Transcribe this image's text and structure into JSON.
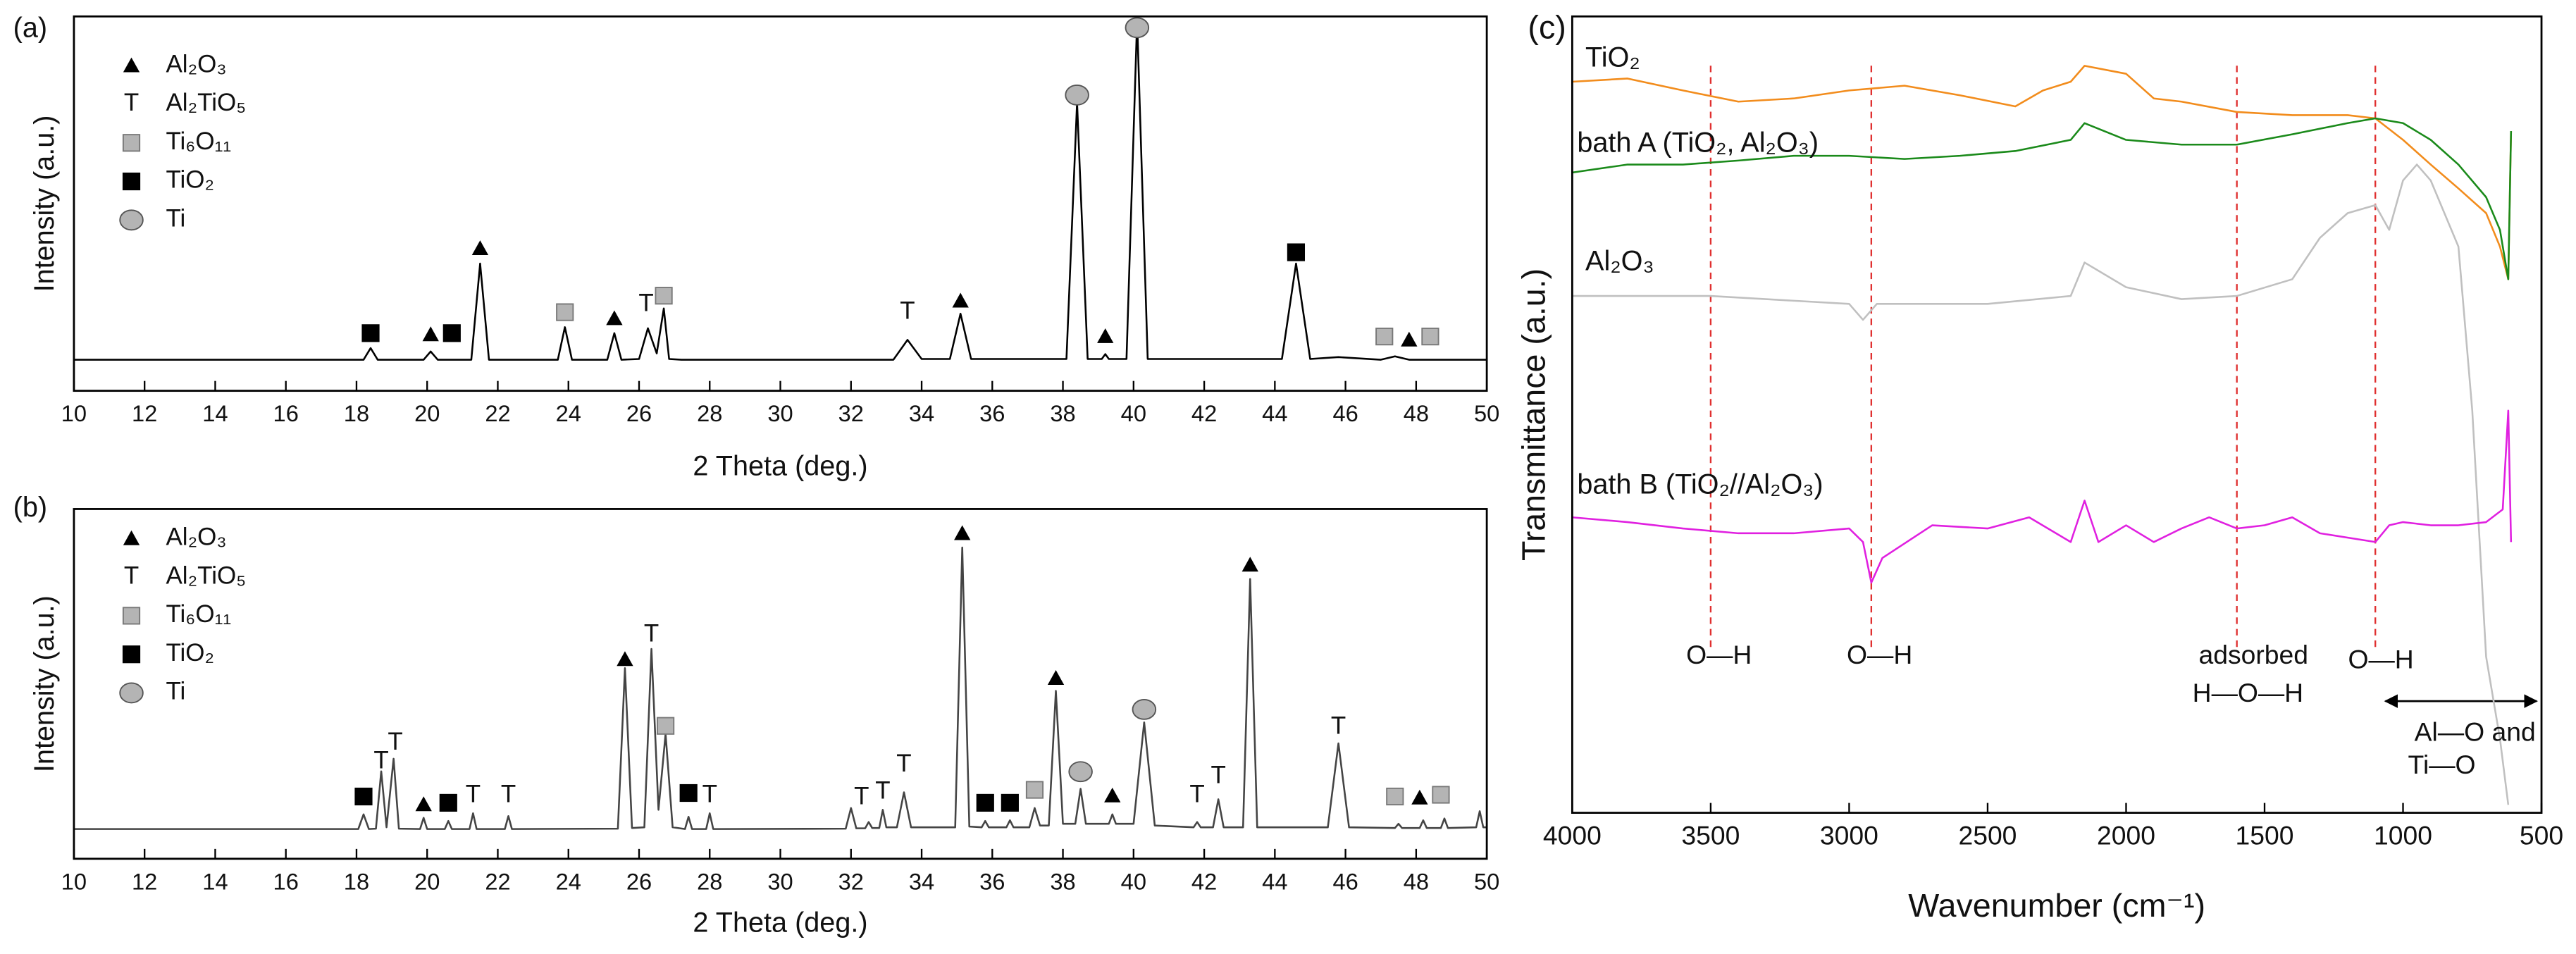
{
  "chart_data": [
    {
      "type": "line",
      "panel_label": "(a)",
      "x_label": "2 Theta (deg.)",
      "y_label": "Intensity (a.u.)",
      "xlim": [
        10,
        50
      ],
      "xticks": [
        10,
        12,
        14,
        16,
        18,
        20,
        22,
        24,
        26,
        28,
        30,
        32,
        34,
        36,
        38,
        40,
        42,
        44,
        46,
        48,
        50
      ],
      "ylim": [
        0,
        100
      ],
      "legend": [
        {
          "name": "Al₂O₃",
          "marker": "triangle",
          "color": "#000000"
        },
        {
          "name": "Al₂TiO₅",
          "marker": "T",
          "color": "#000000"
        },
        {
          "name": "Ti₆O₁₁",
          "marker": "square",
          "color": "#b4b4b4"
        },
        {
          "name": "TiO₂",
          "marker": "square",
          "color": "#000000"
        },
        {
          "name": "Ti",
          "marker": "circle",
          "color": "#b4b4b4"
        }
      ],
      "series": [
        {
          "color": "#000000",
          "x": [
            10,
            18.2,
            18.4,
            18.6,
            19.9,
            20.1,
            20.3,
            20.6,
            21.25,
            21.5,
            21.75,
            23.7,
            23.9,
            24.1,
            24.5,
            25.1,
            25.3,
            25.5,
            26.0,
            26.25,
            26.5,
            26.7,
            26.85,
            27.2,
            33.2,
            33.6,
            34.0,
            34.8,
            35.1,
            35.4,
            38.1,
            38.4,
            38.7,
            39.1,
            39.2,
            39.3,
            39.8,
            40.1,
            40.4,
            44.2,
            44.6,
            45.0,
            45.8,
            47.0,
            47.4,
            47.8,
            50
          ],
          "values": [
            8.3,
            8.3,
            11.4,
            8.3,
            8.3,
            10.5,
            8.3,
            8.3,
            8.3,
            34,
            8.3,
            8.3,
            17,
            8.3,
            8.3,
            8.3,
            15.4,
            8.3,
            8.5,
            16.7,
            10,
            22,
            8.5,
            8.3,
            8.3,
            13.6,
            8.5,
            8.5,
            20.6,
            8.5,
            8.5,
            77,
            8.5,
            8.5,
            9.8,
            8.5,
            8.5,
            99,
            8.5,
            8.5,
            34,
            8.5,
            9,
            8.3,
            9.2,
            8.3,
            8.3
          ]
        }
      ],
      "peak_labels": [
        {
          "phase": 3,
          "x": 18.4,
          "y": 15.4
        },
        {
          "phase": 0,
          "x": 20.1,
          "y": 15
        },
        {
          "phase": 3,
          "x": 20.7,
          "y": 15.4
        },
        {
          "phase": 0,
          "x": 21.5,
          "y": 38
        },
        {
          "phase": 2,
          "x": 23.9,
          "y": 21
        },
        {
          "phase": 0,
          "x": 25.3,
          "y": 19.3
        },
        {
          "phase": 1,
          "x": 26.2,
          "y": 23
        },
        {
          "phase": 2,
          "x": 26.7,
          "y": 25.4
        },
        {
          "phase": 1,
          "x": 33.6,
          "y": 21
        },
        {
          "phase": 0,
          "x": 35.1,
          "y": 24
        },
        {
          "phase": 4,
          "x": 38.4,
          "y": 79
        },
        {
          "phase": 0,
          "x": 39.2,
          "y": 14.5
        },
        {
          "phase": 4,
          "x": 40.1,
          "y": 97
        },
        {
          "phase": 3,
          "x": 44.6,
          "y": 37
        },
        {
          "phase": 2,
          "x": 47.1,
          "y": 14.5
        },
        {
          "phase": 0,
          "x": 47.8,
          "y": 13.6
        },
        {
          "phase": 2,
          "x": 48.4,
          "y": 14.5
        }
      ]
    },
    {
      "type": "line",
      "panel_label": "(b)",
      "x_label": "2 Theta (deg.)",
      "y_label": "Intensity (a.u.)",
      "xlim": [
        10,
        50
      ],
      "xticks": [
        10,
        12,
        14,
        16,
        18,
        20,
        22,
        24,
        26,
        28,
        30,
        32,
        34,
        36,
        38,
        40,
        42,
        44,
        46,
        48,
        50
      ],
      "ylim": [
        0,
        100
      ],
      "legend": [
        {
          "name": "Al₂O₃",
          "marker": "triangle",
          "color": "#000000"
        },
        {
          "name": "Al₂TiO₅",
          "marker": "T",
          "color": "#000000"
        },
        {
          "name": "Ti₆O₁₁",
          "marker": "square",
          "color": "#b4b4b4"
        },
        {
          "name": "TiO₂",
          "marker": "square",
          "color": "#000000"
        },
        {
          "name": "Ti",
          "marker": "circle",
          "color": "#b4b4b4"
        }
      ],
      "series": [
        {
          "color": "#444444",
          "x": [
            10,
            18.05,
            18.2,
            18.35,
            18.55,
            18.7,
            18.85,
            19.05,
            19.2,
            19.8,
            19.9,
            20.0,
            20.5,
            20.6,
            20.7,
            21.2,
            21.3,
            21.4,
            22.2,
            22.3,
            22.4,
            25.4,
            25.6,
            25.8,
            26.15,
            26.35,
            26.55,
            26.75,
            26.95,
            27.3,
            27.4,
            27.5,
            27.9,
            28.0,
            28.1,
            31.85,
            32.0,
            32.15,
            32.4,
            32.5,
            32.6,
            32.8,
            32.9,
            33.0,
            33.3,
            33.5,
            33.7,
            34.95,
            35.15,
            35.35,
            35.7,
            35.8,
            35.9,
            36.4,
            36.5,
            36.6,
            37.05,
            37.2,
            37.35,
            37.6,
            37.8,
            38.0,
            38.35,
            38.5,
            38.65,
            39.3,
            39.4,
            39.5,
            40.0,
            40.3,
            40.6,
            41.7,
            41.8,
            41.9,
            42.25,
            42.4,
            42.55,
            43.1,
            43.3,
            43.5,
            45.5,
            45.8,
            46.1,
            47.4,
            47.5,
            47.6,
            48.1,
            48.2,
            48.3,
            48.7,
            48.8,
            48.9,
            49.7,
            49.8,
            49.9,
            50
          ],
          "values": [
            8.5,
            8.5,
            12.7,
            8.5,
            8.6,
            25,
            9,
            28.6,
            8.6,
            8.5,
            11.7,
            8.5,
            8.5,
            10.8,
            8.5,
            8.5,
            13,
            8.5,
            8.5,
            12.2,
            8.5,
            8.6,
            54.5,
            8.8,
            9,
            60,
            14,
            35.7,
            9,
            8.5,
            12,
            8.5,
            8.5,
            13,
            8.5,
            8.6,
            14.5,
            8.7,
            8.7,
            10.5,
            8.8,
            8.8,
            14,
            9,
            9,
            19,
            9,
            9,
            89,
            9.2,
            9,
            10.8,
            9,
            9,
            11,
            9,
            9,
            14.5,
            9.5,
            9.5,
            48,
            10,
            10,
            20,
            10,
            10,
            12.7,
            10,
            10,
            39,
            9.5,
            9,
            10.5,
            9,
            9,
            17,
            9,
            9,
            80,
            9,
            9,
            33,
            9,
            8.8,
            10,
            8.8,
            8.8,
            11,
            8.8,
            8.8,
            11.5,
            8.8,
            9,
            13.6,
            9,
            9
          ]
        }
      ],
      "peak_labels": [
        {
          "phase": 3,
          "x": 18.2,
          "y": 17.8
        },
        {
          "phase": 1,
          "x": 18.7,
          "y": 27.7
        },
        {
          "phase": 1,
          "x": 19.1,
          "y": 33
        },
        {
          "phase": 0,
          "x": 19.9,
          "y": 15.5
        },
        {
          "phase": 3,
          "x": 20.6,
          "y": 16
        },
        {
          "phase": 1,
          "x": 21.3,
          "y": 18
        },
        {
          "phase": 1,
          "x": 22.3,
          "y": 18
        },
        {
          "phase": 0,
          "x": 25.6,
          "y": 57
        },
        {
          "phase": 1,
          "x": 26.35,
          "y": 64
        },
        {
          "phase": 2,
          "x": 26.75,
          "y": 38
        },
        {
          "phase": 3,
          "x": 27.4,
          "y": 18.8
        },
        {
          "phase": 1,
          "x": 28.0,
          "y": 18
        },
        {
          "phase": 1,
          "x": 32.3,
          "y": 17.4
        },
        {
          "phase": 1,
          "x": 32.9,
          "y": 19
        },
        {
          "phase": 1,
          "x": 33.5,
          "y": 26.8
        },
        {
          "phase": 0,
          "x": 35.15,
          "y": 93
        },
        {
          "phase": 3,
          "x": 35.8,
          "y": 16
        },
        {
          "phase": 3,
          "x": 36.5,
          "y": 16
        },
        {
          "phase": 2,
          "x": 37.2,
          "y": 19.7
        },
        {
          "phase": 0,
          "x": 37.8,
          "y": 51.6
        },
        {
          "phase": 4,
          "x": 38.5,
          "y": 24.9
        },
        {
          "phase": 0,
          "x": 39.4,
          "y": 18
        },
        {
          "phase": 4,
          "x": 40.3,
          "y": 42.7
        },
        {
          "phase": 1,
          "x": 41.8,
          "y": 18
        },
        {
          "phase": 1,
          "x": 42.4,
          "y": 23.5
        },
        {
          "phase": 0,
          "x": 43.3,
          "y": 84
        },
        {
          "phase": 1,
          "x": 45.8,
          "y": 37.6
        },
        {
          "phase": 2,
          "x": 47.4,
          "y": 17.8
        },
        {
          "phase": 0,
          "x": 48.1,
          "y": 17.4
        },
        {
          "phase": 2,
          "x": 48.7,
          "y": 18.3
        }
      ]
    },
    {
      "type": "line",
      "panel_label": "(c)",
      "x_label": "Wavenumber (cm⁻¹)",
      "y_label": "Transmittance (a.u.)",
      "xlim": [
        4000,
        500
      ],
      "xticks": [
        4000,
        3500,
        3000,
        2500,
        2000,
        1500,
        1000,
        500
      ],
      "ylim": [
        0,
        100
      ],
      "series": [
        {
          "name": "TiO₂",
          "color": "#f28c1c",
          "x": [
            4000,
            3800,
            3600,
            3400,
            3200,
            3000,
            2800,
            2600,
            2400,
            2300,
            2200,
            2150,
            2000,
            1900,
            1800,
            1600,
            1400,
            1200,
            1100,
            1000,
            900,
            800,
            700,
            650,
            620,
            610
          ],
          "values": [
            91.8,
            92.2,
            90.7,
            89.3,
            89.7,
            90.7,
            91.3,
            90.1,
            88.7,
            90.7,
            91.8,
            93.8,
            92.8,
            89.7,
            89.3,
            88.0,
            87.6,
            87.6,
            87.2,
            84.5,
            81.4,
            78.4,
            75.3,
            71.1,
            67.0,
            85.6
          ]
        },
        {
          "name": "bath A (TiO₂, Al₂O₃)",
          "color": "#1a8a1a",
          "x": [
            4000,
            3800,
            3600,
            3400,
            3200,
            3000,
            2800,
            2600,
            2400,
            2200,
            2150,
            2000,
            1800,
            1600,
            1400,
            1200,
            1100,
            1000,
            900,
            800,
            700,
            650,
            620,
            610
          ],
          "values": [
            80.4,
            81.4,
            81.4,
            81.9,
            82.5,
            82.5,
            82.1,
            82.5,
            83.1,
            84.5,
            86.6,
            84.5,
            83.9,
            83.9,
            85.2,
            86.6,
            87.2,
            86.6,
            84.5,
            81.4,
            77.3,
            73.2,
            67.0,
            85.6
          ]
        },
        {
          "name": "Al₂O₃",
          "color": "#c0c0c0",
          "x": [
            4000,
            3500,
            3000,
            2950,
            2900,
            2500,
            2200,
            2150,
            2000,
            1800,
            1600,
            1400,
            1300,
            1200,
            1100,
            1050,
            1000,
            950,
            900,
            800,
            750,
            700,
            650,
            620
          ],
          "values": [
            64.9,
            64.9,
            63.9,
            61.9,
            63.9,
            63.9,
            64.9,
            69.1,
            66.0,
            64.5,
            64.9,
            67.0,
            72.2,
            75.3,
            76.3,
            73.2,
            79.4,
            81.4,
            79.4,
            71.1,
            50.5,
            19.6,
            9.3,
            1.0
          ]
        },
        {
          "name": "bath B (TiO₂//Al₂O₃)",
          "color": "#e020e0",
          "x": [
            4000,
            3800,
            3600,
            3400,
            3200,
            3000,
            2950,
            2920,
            2880,
            2700,
            2500,
            2350,
            2200,
            2150,
            2100,
            2000,
            1900,
            1800,
            1700,
            1600,
            1500,
            1400,
            1300,
            1100,
            1050,
            1000,
            900,
            800,
            700,
            640,
            620,
            610
          ],
          "values": [
            37.1,
            36.5,
            35.7,
            35.1,
            35.1,
            35.7,
            34.0,
            28.9,
            32.0,
            36.1,
            35.7,
            37.1,
            34.0,
            39.2,
            34.0,
            36.1,
            34.0,
            35.7,
            37.1,
            35.7,
            36.1,
            37.1,
            35.1,
            34.0,
            36.1,
            36.5,
            36.1,
            36.1,
            36.5,
            38.1,
            50.5,
            34.0
          ]
        }
      ],
      "vlines": [
        3500,
        2920,
        1600,
        1100
      ],
      "vline_color": "#e03030",
      "annotations": [
        {
          "text": "O—H",
          "x": 3470,
          "y": 19.6
        },
        {
          "text": "O—H",
          "x": 2890,
          "y": 19.6
        },
        {
          "text": "adsorbed",
          "x": 1540,
          "y": 19.6
        },
        {
          "text": "H—O—H",
          "x": 1560,
          "y": 14.8
        },
        {
          "text": "O—H",
          "x": 1080,
          "y": 19.0
        },
        {
          "text": "Al—O and",
          "x": 740,
          "y": 9.9
        },
        {
          "text": "Ti—O",
          "x": 860,
          "y": 5.8
        }
      ]
    }
  ]
}
